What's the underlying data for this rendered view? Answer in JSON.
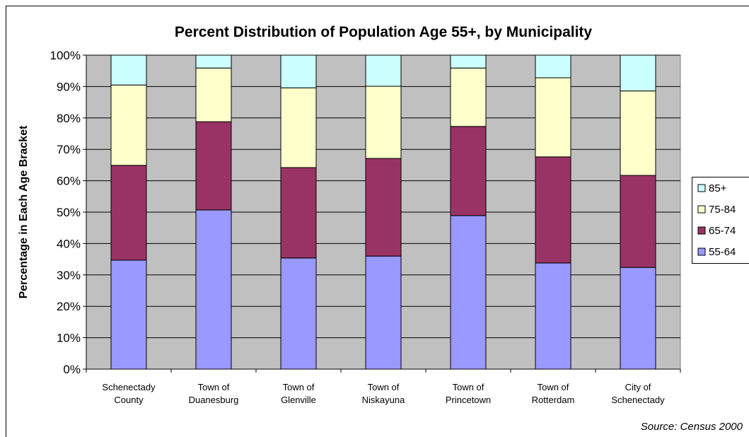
{
  "chart_data": {
    "type": "stacked_bar",
    "title": "Percent Distribution of Population Age 55+, by Municipality",
    "y_label": "Percentage in Each Age Bracket",
    "annotation": "Source: Census 2000",
    "categories": [
      "Schenectady County",
      "Town of Duanesburg",
      "Town of Glenville",
      "Town of Niskayuna",
      "Town of Princetown",
      "Town of Rotterdam",
      "City of Schenectady"
    ],
    "series": [
      {
        "name": "55-64",
        "color": "#9999ff",
        "values": [
          34.7,
          50.7,
          35.4,
          36.0,
          48.9,
          33.8,
          32.4
        ]
      },
      {
        "name": "65-74",
        "color": "#993366",
        "values": [
          30.2,
          28.1,
          28.8,
          31.1,
          28.4,
          33.8,
          29.3
        ]
      },
      {
        "name": "75-84",
        "color": "#ffffcc",
        "values": [
          25.6,
          17.1,
          25.4,
          23.0,
          18.6,
          25.2,
          26.9
        ]
      },
      {
        "name": "85+",
        "color": "#ccffff",
        "values": [
          9.5,
          4.1,
          10.4,
          9.9,
          4.1,
          7.2,
          11.4
        ]
      }
    ],
    "ylim": [
      0,
      100
    ],
    "yticks": [
      {
        "value": 0,
        "label": "0%"
      },
      {
        "value": 10,
        "label": "10%"
      },
      {
        "value": 20,
        "label": "20%"
      },
      {
        "value": 30,
        "label": "30%"
      },
      {
        "value": 40,
        "label": "40%"
      },
      {
        "value": 50,
        "label": "50%"
      },
      {
        "value": 60,
        "label": "60%"
      },
      {
        "value": 70,
        "label": "70%"
      },
      {
        "value": 80,
        "label": "80%"
      },
      {
        "value": 90,
        "label": "90%"
      },
      {
        "value": 100,
        "label": "100%"
      }
    ],
    "grid": true,
    "legend": "right"
  }
}
